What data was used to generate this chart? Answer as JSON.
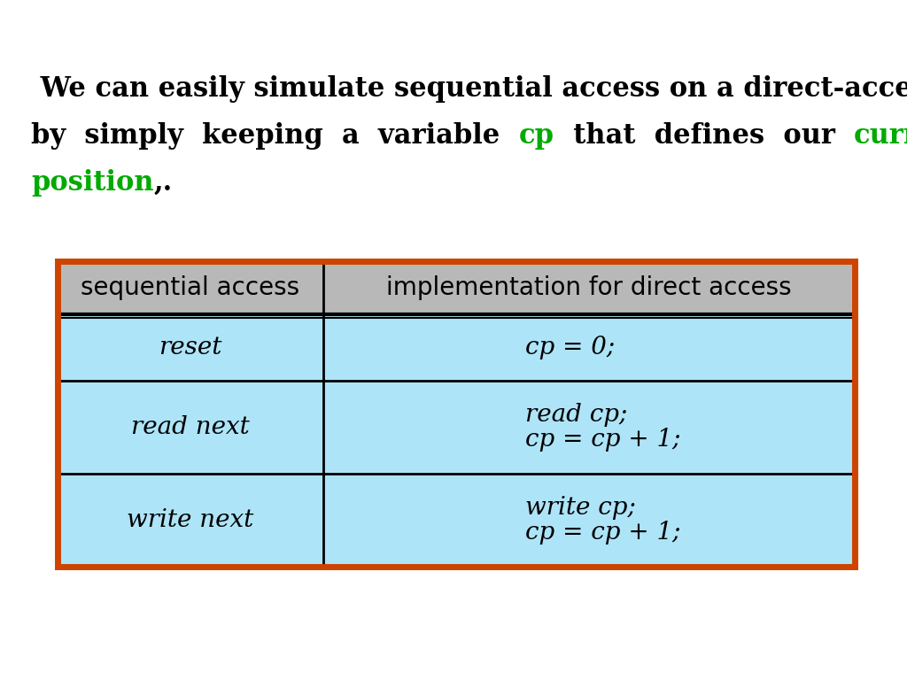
{
  "background_color": "#ffffff",
  "green_color": "#00aa00",
  "black_color": "#000000",
  "table_border_color": "#cc4400",
  "table_header_bg": "#b8b8b8",
  "table_cell_bg": "#aee4f8",
  "table_line_color": "#000000",
  "col1_header": "sequential access",
  "col2_header": "implementation for direct access",
  "rows": [
    {
      "col1": "reset",
      "col2_lines": [
        "cp = 0;"
      ]
    },
    {
      "col1": "read next",
      "col2_lines": [
        "read cp;",
        "cp = cp + 1;"
      ]
    },
    {
      "col1": "write next",
      "col2_lines": [
        "write cp;",
        "cp = cp + 1;"
      ]
    }
  ],
  "text_fontsize": 22,
  "header_fontsize": 20,
  "cell_fontsize": 20,
  "line1": " We can easily simulate sequential access on a direct-access file",
  "line2_black1": "by  simply  keeping  a  variable  ",
  "line2_green1": "cp",
  "line2_black2": "  that  defines  our  ",
  "line2_green2": "current",
  "line3_green": "position",
  "line3_black": ",."
}
